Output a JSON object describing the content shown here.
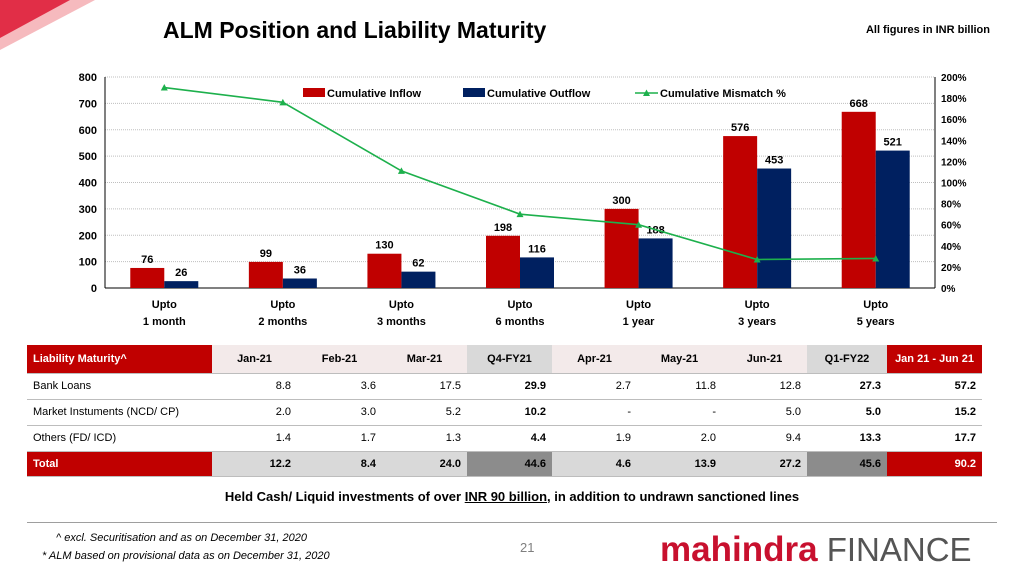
{
  "page": {
    "title": "ALM Position and Liability Maturity",
    "subtitle": "All figures in INR billion",
    "note_prefix": "Held Cash/ Liquid investments of over ",
    "note_highlight": "INR 90 billion",
    "note_suffix": ", in addition to undrawn sanctioned lines",
    "footnote1": "^ excl. Securitisation and as on December 31, 2020",
    "footnote2": "* ALM based on provisional data as on December 31, 2020",
    "page_number": "21",
    "brand_name_1": "mahindra",
    "brand_name_2": "FINANCE"
  },
  "colors": {
    "inflow": "#c00000",
    "outflow": "#002060",
    "mismatch": "#1db04c",
    "brand_red": "#c8102e"
  },
  "chart_data": {
    "type": "bar",
    "categories": [
      [
        "Upto",
        "1  month"
      ],
      [
        "Upto",
        "2 months"
      ],
      [
        "Upto",
        "3 months"
      ],
      [
        "Upto",
        "6  months"
      ],
      [
        "Upto",
        "1 year"
      ],
      [
        "Upto",
        "3 years"
      ],
      [
        "Upto",
        "5 years"
      ]
    ],
    "series": [
      {
        "name": "Cumulative Inflow",
        "type": "bar",
        "values": [
          76,
          99,
          130,
          198,
          300,
          576,
          668
        ],
        "labels": [
          "76",
          "99",
          "130",
          "198",
          "300",
          "576",
          "668"
        ]
      },
      {
        "name": "Cumulative Outflow",
        "type": "bar",
        "values": [
          26,
          36,
          62,
          116,
          188,
          453,
          521
        ],
        "labels": [
          "26",
          "36",
          "62",
          "116",
          "188",
          "453",
          "521"
        ]
      },
      {
        "name": "Cumulative Mismatch %",
        "type": "line",
        "axis": "right",
        "values": [
          190,
          176,
          111,
          70,
          60,
          27,
          28
        ]
      }
    ],
    "y_left": {
      "min": 0,
      "max": 800,
      "ticks": [
        "0",
        "100",
        "200",
        "300",
        "400",
        "500",
        "600",
        "700",
        "800"
      ]
    },
    "y_right": {
      "min": 0,
      "max": 200,
      "ticks": [
        "0%",
        "20%",
        "40%",
        "60%",
        "80%",
        "100%",
        "120%",
        "140%",
        "160%",
        "180%",
        "200%"
      ]
    },
    "grid": true,
    "legend_position": "top"
  },
  "table": {
    "columns": [
      "Liability Maturity^",
      "Jan-21",
      "Feb-21",
      "Mar-21",
      "Q4-FY21",
      "Apr-21",
      "May-21",
      "Jun-21",
      "Q1-FY22",
      "Jan 21 - Jun 21"
    ],
    "rows": [
      [
        "Bank Loans",
        "8.8",
        "3.6",
        "17.5",
        "29.9",
        "2.7",
        "11.8",
        "12.8",
        "27.3",
        "57.2"
      ],
      [
        "Market Instuments (NCD/ CP)",
        "2.0",
        "3.0",
        "5.2",
        "10.2",
        "-",
        "-",
        "5.0",
        "5.0",
        "15.2"
      ],
      [
        "Others (FD/ ICD)",
        "1.4",
        "1.7",
        "1.3",
        "4.4",
        "1.9",
        "2.0",
        "9.4",
        "13.3",
        "17.7"
      ]
    ],
    "total": [
      "Total",
      "12.2",
      "8.4",
      "24.0",
      "44.6",
      "4.6",
      "13.9",
      "27.2",
      "45.6",
      "90.2"
    ]
  }
}
